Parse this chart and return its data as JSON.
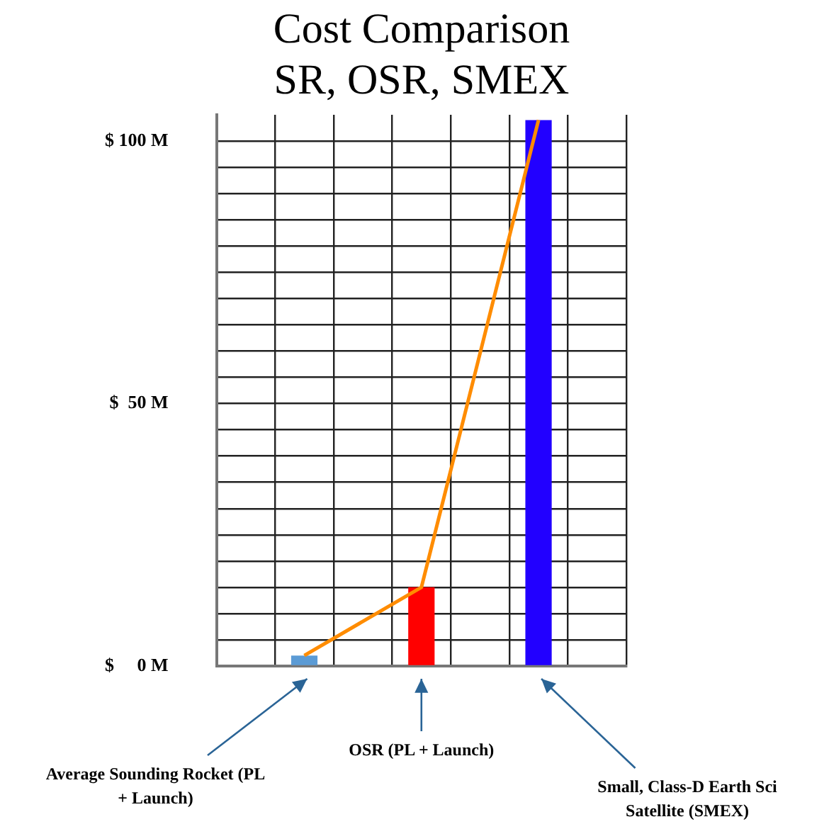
{
  "chart_data": {
    "type": "bar",
    "title": "Cost Comparison",
    "subtitle": "SR, OSR, SMEX",
    "categories": [
      null,
      null,
      null,
      null,
      null,
      null,
      null
    ],
    "series": [
      {
        "colors": [
          "#5b9bd5",
          "#5b9bd5",
          "#ff0000",
          "#ff0000",
          "#2200ff",
          "#2200ff",
          "#2200ff"
        ],
        "values": [
          null,
          2,
          null,
          15,
          null,
          104,
          null
        ]
      },
      {
        "type": "line",
        "color": "#ff8c00",
        "values": [
          null,
          2,
          null,
          15,
          null,
          104,
          null
        ]
      }
    ],
    "annotations": [
      "Average Sounding Rocket (PL + Launch)",
      "OSR (PL + Launch)",
      "Small, Class-D Earth Sci Satellite  (SMEX)"
    ],
    "ylim": [
      0,
      105
    ],
    "yticks": [
      {
        "value": 0,
        "label": "$     0 M"
      },
      {
        "value": 5,
        "label": null
      },
      {
        "value": 10,
        "label": null
      },
      {
        "value": 15,
        "label": null
      },
      {
        "value": 20,
        "label": null
      },
      {
        "value": 25,
        "label": null
      },
      {
        "value": 30,
        "label": null
      },
      {
        "value": 35,
        "label": null
      },
      {
        "value": 40,
        "label": null
      },
      {
        "value": 45,
        "label": null
      },
      {
        "value": 50,
        "label": "$  50 M"
      },
      {
        "value": 55,
        "label": null
      },
      {
        "value": 60,
        "label": null
      },
      {
        "value": 65,
        "label": null
      },
      {
        "value": 70,
        "label": null
      },
      {
        "value": 75,
        "label": null
      },
      {
        "value": 80,
        "label": null
      },
      {
        "value": 85,
        "label": null
      },
      {
        "value": 90,
        "label": null
      },
      {
        "value": 95,
        "label": null
      },
      {
        "value": 100,
        "label": "$ 100 M"
      }
    ],
    "grid": true,
    "legend": false,
    "marker": "none",
    "tick_labels": "y"
  }
}
